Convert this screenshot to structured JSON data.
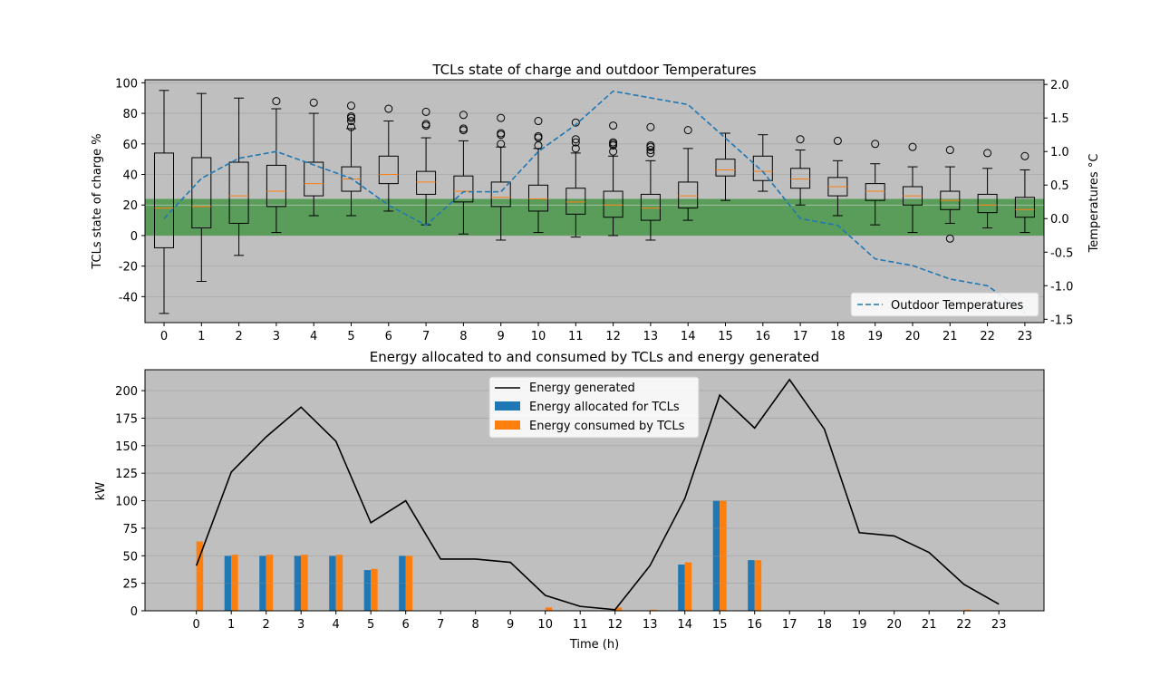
{
  "chart_data": [
    {
      "type": "box",
      "title": "TCLs state of charge and outdoor Temperatures",
      "xlabel": "",
      "ylabel": "TCLs state of charge %",
      "y2label": "Temperatures °C",
      "categories": [
        "0",
        "1",
        "2",
        "3",
        "4",
        "5",
        "6",
        "7",
        "8",
        "9",
        "10",
        "11",
        "12",
        "13",
        "14",
        "15",
        "16",
        "17",
        "18",
        "19",
        "20",
        "21",
        "22",
        "23"
      ],
      "ylim": [
        -57,
        102
      ],
      "yticks": [
        -40,
        -20,
        0,
        20,
        40,
        60,
        80,
        100
      ],
      "y2lim": [
        -1.55,
        2.07
      ],
      "y2ticks": [
        -1.5,
        -1.0,
        -0.5,
        0.0,
        0.5,
        1.0,
        1.5,
        2.0
      ],
      "band": {
        "from": 0,
        "to": 24,
        "color": "#5a9d5a"
      },
      "background": "#bfbfbf",
      "grid": "y",
      "boxes": [
        {
          "whislo": -51,
          "q1": -8,
          "med": 18,
          "q3": 54,
          "whishi": 95,
          "fliers": []
        },
        {
          "whislo": -30,
          "q1": 5,
          "med": 19,
          "q3": 51,
          "whishi": 93,
          "fliers": []
        },
        {
          "whislo": -13,
          "q1": 8,
          "med": 26,
          "q3": 48,
          "whishi": 90,
          "fliers": []
        },
        {
          "whislo": 2,
          "q1": 19,
          "med": 29,
          "q3": 46,
          "whishi": 83,
          "fliers": [
            88
          ]
        },
        {
          "whislo": 13,
          "q1": 26,
          "med": 34,
          "q3": 48,
          "whishi": 80,
          "fliers": [
            87
          ]
        },
        {
          "whislo": 13,
          "q1": 29,
          "med": 37,
          "q3": 45,
          "whishi": 70,
          "fliers": [
            71,
            75,
            77,
            78,
            85
          ]
        },
        {
          "whislo": 16,
          "q1": 34,
          "med": 40,
          "q3": 52,
          "whishi": 75,
          "fliers": [
            83
          ]
        },
        {
          "whislo": 7,
          "q1": 27,
          "med": 35,
          "q3": 42,
          "whishi": 64,
          "fliers": [
            72,
            73,
            81
          ]
        },
        {
          "whislo": 1,
          "q1": 22,
          "med": 29,
          "q3": 39,
          "whishi": 62,
          "fliers": [
            69,
            70,
            79
          ]
        },
        {
          "whislo": -3,
          "q1": 19,
          "med": 25,
          "q3": 35,
          "whishi": 58,
          "fliers": [
            60,
            66,
            67,
            77
          ]
        },
        {
          "whislo": 2,
          "q1": 16,
          "med": 24,
          "q3": 33,
          "whishi": 57,
          "fliers": [
            59,
            64,
            65,
            75
          ]
        },
        {
          "whislo": -1,
          "q1": 14,
          "med": 22,
          "q3": 31,
          "whishi": 54,
          "fliers": [
            57,
            61,
            63,
            74
          ]
        },
        {
          "whislo": 0,
          "q1": 12,
          "med": 20,
          "q3": 29,
          "whishi": 52,
          "fliers": [
            55,
            59,
            60,
            61,
            72
          ]
        },
        {
          "whislo": -3,
          "q1": 10,
          "med": 18,
          "q3": 27,
          "whishi": 49,
          "fliers": [
            54,
            56,
            58,
            59,
            71
          ]
        },
        {
          "whislo": 10,
          "q1": 18,
          "med": 26,
          "q3": 35,
          "whishi": 57,
          "fliers": [
            69
          ]
        },
        {
          "whislo": 23,
          "q1": 39,
          "med": 43,
          "q3": 50,
          "whishi": 67,
          "fliers": []
        },
        {
          "whislo": 29,
          "q1": 36,
          "med": 42,
          "q3": 52,
          "whishi": 66,
          "fliers": []
        },
        {
          "whislo": 20,
          "q1": 31,
          "med": 37,
          "q3": 44,
          "whishi": 56,
          "fliers": [
            63
          ]
        },
        {
          "whislo": 13,
          "q1": 26,
          "med": 32,
          "q3": 38,
          "whishi": 49,
          "fliers": [
            62
          ]
        },
        {
          "whislo": 7,
          "q1": 23,
          "med": 29,
          "q3": 34,
          "whishi": 47,
          "fliers": [
            60
          ]
        },
        {
          "whislo": 2,
          "q1": 20,
          "med": 26,
          "q3": 32,
          "whishi": 45,
          "fliers": [
            58
          ]
        },
        {
          "whislo": 8,
          "q1": 17,
          "med": 23,
          "q3": 29,
          "whishi": 45,
          "fliers": [
            -2,
            56
          ]
        },
        {
          "whislo": 5,
          "q1": 15,
          "med": 20,
          "q3": 27,
          "whishi": 44,
          "fliers": [
            54
          ]
        },
        {
          "whislo": 2,
          "q1": 12,
          "med": 17,
          "q3": 25,
          "whishi": 43,
          "fliers": [
            52
          ]
        }
      ],
      "series": [
        {
          "name": "Outdoor Temperatures",
          "axis": "right",
          "style": "dashed",
          "color": "#1f77b4",
          "values": [
            0.0,
            0.6,
            0.9,
            1.0,
            0.8,
            0.6,
            0.2,
            -0.1,
            0.4,
            0.4,
            1.0,
            1.4,
            1.9,
            1.8,
            1.7,
            1.2,
            0.7,
            0.0,
            -0.1,
            -0.6,
            -0.7,
            -0.9,
            -1.0,
            -1.4
          ]
        }
      ],
      "legend": {
        "placement": "lower right",
        "entries": [
          "Outdoor Temperatures"
        ]
      }
    },
    {
      "type": "bar",
      "title": "Energy allocated to and consumed by TCLs and energy generated",
      "xlabel": "Time (h)",
      "ylabel": "kW",
      "categories": [
        "0",
        "1",
        "2",
        "3",
        "4",
        "5",
        "6",
        "7",
        "8",
        "9",
        "10",
        "11",
        "12",
        "13",
        "14",
        "15",
        "16",
        "17",
        "18",
        "19",
        "20",
        "21",
        "22",
        "23"
      ],
      "xlim": [
        -1.5,
        24.3
      ],
      "ylim": [
        0,
        219
      ],
      "yticks": [
        0,
        25,
        50,
        75,
        100,
        125,
        150,
        175,
        200
      ],
      "background": "#bfbfbf",
      "grid": "y",
      "series": [
        {
          "name": "Energy generated",
          "type": "line",
          "color": "#000000",
          "values": [
            41,
            126,
            158,
            185,
            154,
            80,
            100,
            47,
            47,
            44,
            14,
            4,
            1,
            41,
            102,
            196,
            166,
            210,
            165,
            71,
            68,
            53,
            24,
            6
          ]
        },
        {
          "name": "Energy allocated for TCLs",
          "type": "bar",
          "color": "#1f77b4",
          "values": [
            0,
            50,
            50,
            50,
            50,
            37,
            50,
            0,
            0,
            0,
            0,
            0,
            0,
            0,
            42,
            100,
            46,
            0,
            0,
            0,
            0,
            0,
            0,
            0
          ]
        },
        {
          "name": "Energy consumed by TCLs",
          "type": "bar",
          "color": "#ff7f0e",
          "values": [
            63,
            51,
            51,
            51,
            51,
            38,
            50,
            0,
            0,
            0,
            3,
            0,
            3,
            1,
            44,
            100,
            46,
            0,
            0,
            0,
            0,
            0,
            1,
            0
          ]
        }
      ],
      "legend": {
        "placement": "upper center",
        "entries": [
          "Energy generated",
          "Energy allocated for TCLs",
          "Energy consumed by TCLs"
        ]
      }
    }
  ]
}
